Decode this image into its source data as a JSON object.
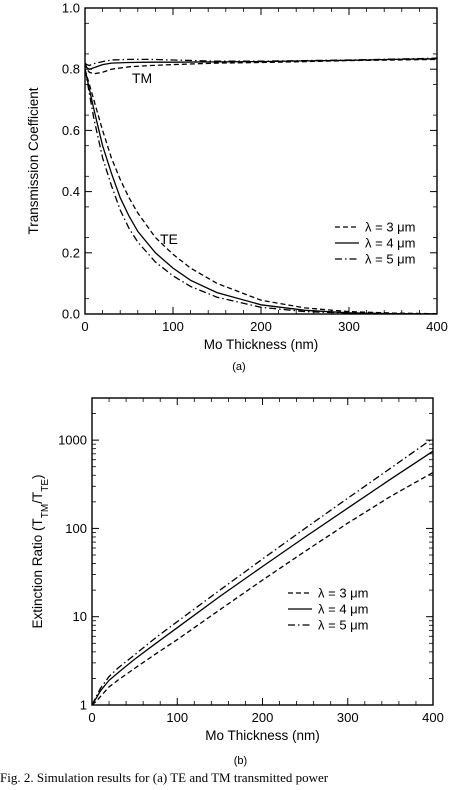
{
  "chart_data": [
    {
      "type": "line",
      "panel_label": "(a)",
      "xlabel": "Mo Thickness (nm)",
      "ylabel": "Transmission Coefficient",
      "xlim": [
        0,
        400
      ],
      "ylim": [
        0.0,
        1.0
      ],
      "x_ticks": [
        "0",
        "100",
        "200",
        "300",
        "400"
      ],
      "y_ticks": [
        "0.0",
        "0.2",
        "0.4",
        "0.6",
        "0.8",
        "1.0"
      ],
      "grid": false,
      "legend_position": "lower-right",
      "annotations": [
        "TM",
        "TE"
      ],
      "series": [
        {
          "name": "λ = 3 μm",
          "style": "dashed",
          "group": "TM",
          "x": [
            0,
            2,
            5,
            10,
            20,
            30,
            50,
            75,
            100,
            150,
            200,
            250,
            300,
            350,
            400
          ],
          "y": [
            0.82,
            0.8,
            0.79,
            0.785,
            0.79,
            0.8,
            0.808,
            0.812,
            0.815,
            0.82,
            0.822,
            0.825,
            0.828,
            0.83,
            0.832
          ]
        },
        {
          "name": "λ = 4 μm",
          "style": "solid",
          "group": "TM",
          "x": [
            0,
            2,
            5,
            10,
            20,
            30,
            50,
            75,
            100,
            150,
            200,
            250,
            300,
            350,
            400
          ],
          "y": [
            0.82,
            0.805,
            0.8,
            0.805,
            0.815,
            0.82,
            0.822,
            0.823,
            0.823,
            0.824,
            0.825,
            0.827,
            0.829,
            0.832,
            0.834
          ]
        },
        {
          "name": "λ = 5 μm",
          "style": "dashdot",
          "group": "TM",
          "x": [
            0,
            2,
            5,
            10,
            20,
            30,
            50,
            75,
            100,
            150,
            200,
            250,
            300,
            350,
            400
          ],
          "y": [
            0.82,
            0.815,
            0.812,
            0.818,
            0.825,
            0.83,
            0.832,
            0.832,
            0.83,
            0.826,
            0.826,
            0.828,
            0.83,
            0.833,
            0.836
          ]
        },
        {
          "name": "λ = 3 μm",
          "style": "dashed",
          "group": "TE",
          "x": [
            0,
            10,
            20,
            30,
            40,
            50,
            60,
            80,
            100,
            120,
            150,
            200,
            250,
            300,
            350,
            400
          ],
          "y": [
            0.8,
            0.7,
            0.6,
            0.51,
            0.44,
            0.38,
            0.33,
            0.25,
            0.195,
            0.15,
            0.1,
            0.045,
            0.02,
            0.008,
            0.003,
            0.001
          ]
        },
        {
          "name": "λ = 4 μm",
          "style": "solid",
          "group": "TE",
          "x": [
            0,
            10,
            20,
            30,
            40,
            50,
            60,
            80,
            100,
            120,
            150,
            200,
            250,
            300,
            350,
            400
          ],
          "y": [
            0.8,
            0.67,
            0.55,
            0.46,
            0.38,
            0.32,
            0.27,
            0.2,
            0.15,
            0.11,
            0.07,
            0.03,
            0.012,
            0.004,
            0.001,
            0.0
          ]
        },
        {
          "name": "λ = 5 μm",
          "style": "dashdot",
          "group": "TE",
          "x": [
            0,
            10,
            20,
            30,
            40,
            50,
            60,
            80,
            100,
            120,
            150,
            200,
            250,
            300,
            350,
            400
          ],
          "y": [
            0.8,
            0.64,
            0.51,
            0.42,
            0.34,
            0.28,
            0.235,
            0.17,
            0.125,
            0.09,
            0.055,
            0.022,
            0.008,
            0.003,
            0.001,
            0.0
          ]
        }
      ],
      "legend": [
        "λ = 3 μm",
        "λ = 4 μm",
        "λ = 5 μm"
      ]
    },
    {
      "type": "line",
      "panel_label": "(b)",
      "xlabel": "Mo Thickness (nm)",
      "ylabel": "Extinction Ratio (T",
      "ylabel_sub1": "TM",
      "ylabel_mid": "/T",
      "ylabel_sub2": "TE",
      "ylabel_end": ")",
      "xlim": [
        0,
        400
      ],
      "ylim": [
        1,
        3000
      ],
      "yscale": "log",
      "x_ticks": [
        "0",
        "100",
        "200",
        "300",
        "400"
      ],
      "y_ticks": [
        "1",
        "10",
        "100",
        "1000"
      ],
      "grid": false,
      "legend_position": "lower-right",
      "series": [
        {
          "name": "λ = 3 μm",
          "style": "dashed",
          "x": [
            0,
            5,
            10,
            20,
            30,
            50,
            75,
            100,
            150,
            200,
            250,
            300,
            350,
            400
          ],
          "y": [
            1,
            1.1,
            1.25,
            1.6,
            1.9,
            2.6,
            3.8,
            5.5,
            12,
            26,
            55,
            115,
            230,
            430
          ]
        },
        {
          "name": "λ = 4 μm",
          "style": "solid",
          "x": [
            0,
            5,
            10,
            20,
            30,
            50,
            75,
            100,
            150,
            200,
            250,
            300,
            350,
            400
          ],
          "y": [
            1,
            1.2,
            1.45,
            1.9,
            2.3,
            3.3,
            5.0,
            7.5,
            17,
            37,
            80,
            170,
            360,
            750
          ]
        },
        {
          "name": "λ = 5 μm",
          "style": "dashdot",
          "x": [
            0,
            5,
            10,
            20,
            30,
            50,
            75,
            100,
            150,
            200,
            250,
            300,
            350,
            400
          ],
          "y": [
            1,
            1.25,
            1.55,
            2.1,
            2.6,
            3.7,
            5.8,
            8.8,
            20,
            45,
            100,
            220,
            480,
            1050
          ]
        }
      ],
      "legend": [
        "λ = 3 μm",
        "λ = 4 μm",
        "λ = 5 μm"
      ]
    }
  ],
  "caption": "Fig. 2.   Simulation results for (a) TE and TM transmitted power"
}
